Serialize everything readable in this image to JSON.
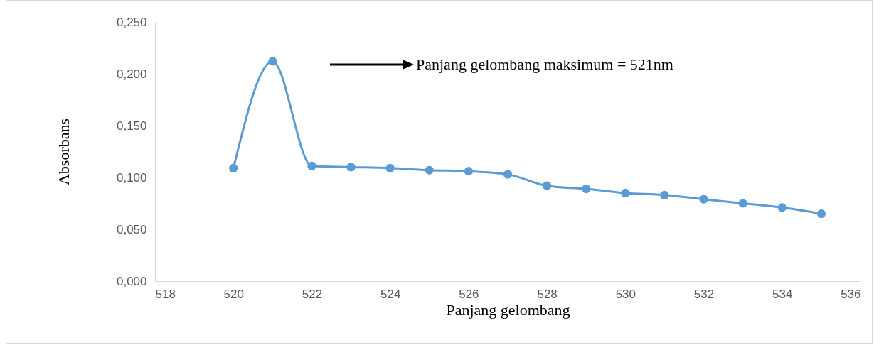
{
  "chart_data": {
    "type": "line",
    "xlabel": "Panjang gelombang",
    "ylabel": "Absorbans",
    "x": [
      520,
      521,
      522,
      523,
      524,
      525,
      526,
      527,
      528,
      529,
      530,
      531,
      532,
      533,
      534,
      535
    ],
    "series": [
      {
        "color": "#5b9bd5",
        "values": [
          0.109,
          0.212,
          0.111,
          0.11,
          0.109,
          0.107,
          0.106,
          0.103,
          0.092,
          0.089,
          0.085,
          0.083,
          0.079,
          0.075,
          0.071,
          0.065
        ]
      }
    ],
    "xlim": [
      518,
      536
    ],
    "xticks": [
      518,
      520,
      522,
      524,
      526,
      528,
      530,
      532,
      534,
      536
    ],
    "ylim": [
      0,
      0.25
    ],
    "yticks": [
      {
        "value": 0,
        "label": "0,000"
      },
      {
        "value": 0.05,
        "label": "0,050"
      },
      {
        "value": 0.1,
        "label": "0,100"
      },
      {
        "value": 0.15,
        "label": "0,150"
      },
      {
        "value": 0.2,
        "label": "0,200"
      },
      {
        "value": 0.25,
        "label": "0,250"
      }
    ],
    "annotations": [
      "Panjang gelombang maksimum = 521nm"
    ],
    "marker": "circle",
    "line_style": "solid",
    "grid": false
  }
}
